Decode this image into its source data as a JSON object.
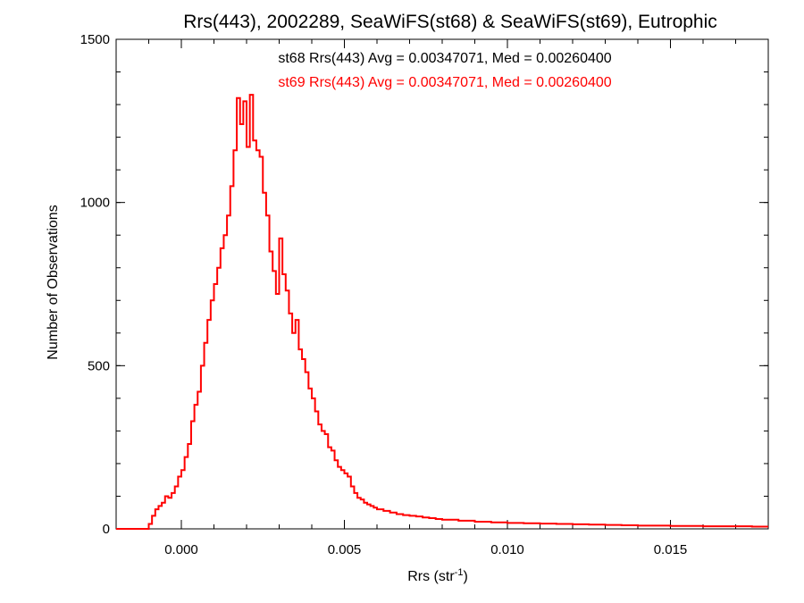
{
  "chart_data": {
    "type": "line",
    "step": true,
    "title": "Rrs(443), 2002289, SeaWiFS(st68) & SeaWiFS(st69), Eutrophic",
    "xlabel": "Rrs (str",
    "xlabel_sup": "-1",
    "xlabel_close": ")",
    "ylabel": "Number of Observations",
    "xlim": [
      -0.002,
      0.018
    ],
    "ylim": [
      0,
      1500
    ],
    "xticks": [
      0.0,
      0.005,
      0.01,
      0.015
    ],
    "xtick_labels": [
      "0.000",
      "0.005",
      "0.010",
      "0.015"
    ],
    "yticks": [
      0,
      500,
      1000,
      1500
    ],
    "ytick_labels": [
      "0",
      "500",
      "1000",
      "1500"
    ],
    "annotations": [
      {
        "text": "st68 Rrs(443) Avg = 0.00347071, Med = 0.00260400",
        "color": "#000000"
      },
      {
        "text": "st69 Rrs(443) Avg = 0.00347071, Med = 0.00260400",
        "color": "#ff0000"
      }
    ],
    "series": [
      {
        "color": "#ff0000",
        "x": [
          -0.0015,
          -0.001,
          -0.0009,
          -0.0008,
          -0.0007,
          -0.0006,
          -0.0005,
          -0.0004,
          -0.0003,
          -0.0002,
          -0.0001,
          0.0,
          0.0001,
          0.0002,
          0.0003,
          0.0004,
          0.0005,
          0.0006,
          0.0007,
          0.0008,
          0.0009,
          0.001,
          0.0011,
          0.0012,
          0.0013,
          0.0014,
          0.0015,
          0.0016,
          0.0017,
          0.0018,
          0.0019,
          0.002,
          0.0021,
          0.0022,
          0.0023,
          0.0024,
          0.0025,
          0.0026,
          0.0027,
          0.0028,
          0.0029,
          0.003,
          0.0031,
          0.0032,
          0.0033,
          0.0034,
          0.0035,
          0.0036,
          0.0037,
          0.0038,
          0.0039,
          0.004,
          0.0041,
          0.0042,
          0.0043,
          0.0044,
          0.0045,
          0.0046,
          0.0047,
          0.0048,
          0.0049,
          0.005,
          0.0051,
          0.0052,
          0.0053,
          0.0054,
          0.0055,
          0.0056,
          0.0057,
          0.0058,
          0.0059,
          0.006,
          0.0062,
          0.0064,
          0.0066,
          0.0068,
          0.007,
          0.0072,
          0.0074,
          0.0076,
          0.0078,
          0.008,
          0.0085,
          0.009,
          0.0095,
          0.01,
          0.0105,
          0.011,
          0.0115,
          0.012,
          0.0125,
          0.013,
          0.0135,
          0.014,
          0.0145,
          0.015,
          0.0155,
          0.016,
          0.0165,
          0.017,
          0.0175,
          0.018
        ],
        "values": [
          0,
          15,
          40,
          60,
          70,
          80,
          100,
          95,
          110,
          130,
          160,
          180,
          220,
          260,
          330,
          380,
          420,
          500,
          570,
          640,
          700,
          750,
          800,
          860,
          900,
          960,
          1050,
          1160,
          1320,
          1240,
          1310,
          1170,
          1330,
          1190,
          1160,
          1140,
          1030,
          960,
          850,
          790,
          720,
          890,
          780,
          730,
          660,
          600,
          640,
          550,
          520,
          480,
          430,
          400,
          360,
          320,
          300,
          290,
          250,
          240,
          210,
          190,
          180,
          170,
          160,
          130,
          110,
          95,
          90,
          80,
          75,
          70,
          65,
          60,
          55,
          50,
          45,
          42,
          40,
          38,
          35,
          33,
          30,
          28,
          25,
          22,
          20,
          18,
          17,
          16,
          15,
          14,
          13,
          12,
          11,
          10,
          10,
          9,
          9,
          8,
          8,
          8,
          7,
          7
        ]
      }
    ]
  }
}
